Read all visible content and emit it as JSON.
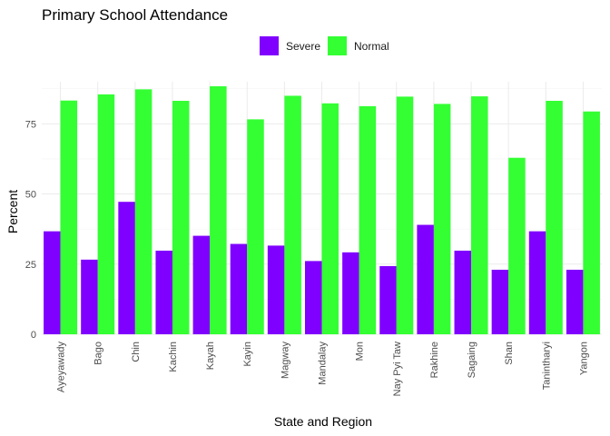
{
  "chart_data": {
    "type": "bar",
    "title": "Primary School Attendance",
    "xlabel": "State and Region",
    "ylabel": "Percent",
    "ylim": [
      0,
      90
    ],
    "yticks": [
      0,
      25,
      50,
      75
    ],
    "grid": true,
    "legend_position": "top",
    "categories": [
      "Ayeyawady",
      "Bago",
      "Chin",
      "Kachin",
      "Kayah",
      "Kayin",
      "Magway",
      "Mandalay",
      "Mon",
      "Nay Pyi Taw",
      "Rakhine",
      "Sagaing",
      "Shan",
      "Tanintharyi",
      "Yangon"
    ],
    "series": [
      {
        "name": "Severe",
        "color": "#8000ff",
        "values": [
          36.7,
          26.6,
          47.2,
          29.8,
          35.1,
          32.2,
          31.6,
          26.1,
          29.2,
          24.3,
          39.0,
          29.8,
          23.0,
          36.7,
          23.0
        ]
      },
      {
        "name": "Normal",
        "color": "#33ff33",
        "values": [
          83.3,
          85.5,
          87.3,
          83.2,
          88.4,
          76.6,
          85.0,
          82.3,
          81.3,
          84.7,
          82.1,
          84.8,
          62.9,
          83.2,
          79.4
        ]
      }
    ]
  }
}
